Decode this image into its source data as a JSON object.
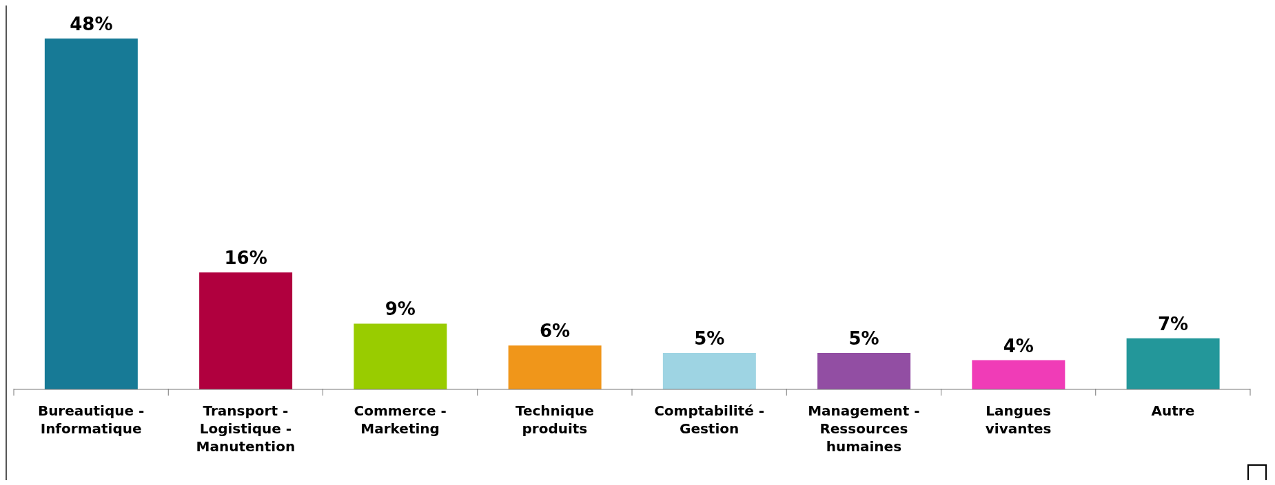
{
  "chart_data": {
    "type": "bar",
    "categories": [
      "Bureautique - Informatique",
      "Transport - Logistique - Manutention",
      "Commerce - Marketing",
      "Technique produits",
      "Comptabilité - Gestion",
      "Management - Ressources humaines",
      "Langues vivantes",
      "Autre"
    ],
    "values": [
      48,
      16,
      9,
      6,
      5,
      5,
      4,
      7
    ],
    "colors": [
      "#177a96",
      "#b0003e",
      "#99cc00",
      "#f0961a",
      "#9ed4e3",
      "#924ea3",
      "#f03cb7",
      "#23979a"
    ],
    "value_labels": [
      "48%",
      "16%",
      "9%",
      "6%",
      "5%",
      "5%",
      "4%",
      "7%"
    ],
    "grid": false,
    "legend": false
  }
}
